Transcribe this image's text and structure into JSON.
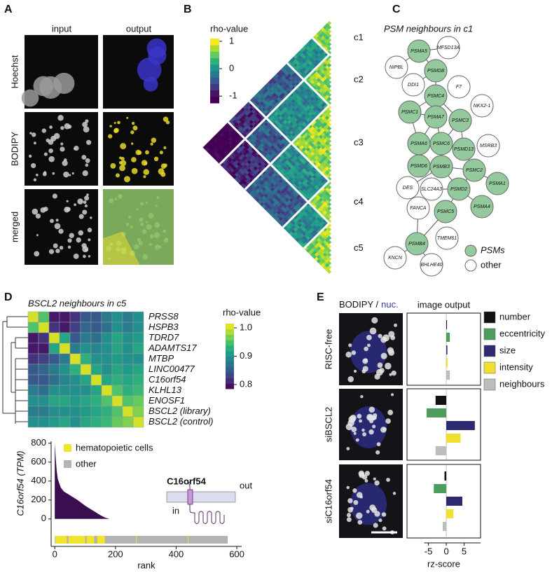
{
  "panel_labels": [
    "A",
    "B",
    "C",
    "D",
    "E"
  ],
  "panel_a": {
    "col_titles": [
      "input",
      "output"
    ],
    "row_titles": [
      "Hoechst",
      "BODIPY",
      "merged"
    ]
  },
  "panel_b": {
    "colorbar_title": "rho-value",
    "clim": [
      -1.25,
      1.1
    ],
    "colorbar_ticks": [
      1,
      0,
      -1
    ],
    "clusters": [
      "c1",
      "c2",
      "c3",
      "c4",
      "c5"
    ]
  },
  "panel_c": {
    "title": "PSM neighbours in c1",
    "nodes": [
      {
        "label": "PSMA5",
        "group": 0
      },
      {
        "label": "MFSD13A",
        "group": 1
      },
      {
        "label": "NIPBL",
        "group": 1
      },
      {
        "label": "PSMD8",
        "group": 0
      },
      {
        "label": "DDI1",
        "group": 1
      },
      {
        "label": "F7",
        "group": 1
      },
      {
        "label": "PSMC4",
        "group": 0
      },
      {
        "label": "NKX2-1",
        "group": 1
      },
      {
        "label": "PSMC1",
        "group": 0
      },
      {
        "label": "PSMA7",
        "group": 0
      },
      {
        "label": "PSMC3",
        "group": 0
      },
      {
        "label": "PSMA6",
        "group": 0
      },
      {
        "label": "PSMC6",
        "group": 0
      },
      {
        "label": "PSMD13",
        "group": 0
      },
      {
        "label": "MSRB3",
        "group": 1
      },
      {
        "label": "PSMD6",
        "group": 0
      },
      {
        "label": "PSMB3",
        "group": 0
      },
      {
        "label": "PSMC2",
        "group": 0
      },
      {
        "label": "PSMA1",
        "group": 0
      },
      {
        "label": "DES",
        "group": 1
      },
      {
        "label": "SLC24A3",
        "group": 1
      },
      {
        "label": "PSMD2",
        "group": 0
      },
      {
        "label": "PSMA4",
        "group": 0
      },
      {
        "label": "FANCA",
        "group": 1
      },
      {
        "label": "PSMC5",
        "group": 0
      },
      {
        "label": "TMEM61",
        "group": 1
      },
      {
        "label": "PSMB4",
        "group": 0
      },
      {
        "label": "KNCN",
        "group": 1
      },
      {
        "label": "BHLHE40",
        "group": 1
      }
    ],
    "edges": [
      [
        0,
        1
      ],
      [
        0,
        2
      ],
      [
        0,
        3
      ],
      [
        3,
        4
      ],
      [
        3,
        6
      ],
      [
        6,
        9
      ],
      [
        6,
        8
      ],
      [
        6,
        10
      ],
      [
        8,
        11
      ],
      [
        8,
        9
      ],
      [
        9,
        12
      ],
      [
        9,
        11
      ],
      [
        10,
        12
      ],
      [
        10,
        13
      ],
      [
        11,
        12
      ],
      [
        11,
        15
      ],
      [
        12,
        16
      ],
      [
        12,
        13
      ],
      [
        15,
        16
      ],
      [
        16,
        21
      ],
      [
        16,
        17
      ],
      [
        17,
        21
      ],
      [
        17,
        18
      ],
      [
        21,
        22
      ],
      [
        21,
        24
      ],
      [
        21,
        20
      ],
      [
        13,
        17
      ],
      [
        24,
        26
      ],
      [
        26,
        27
      ],
      [
        26,
        28
      ],
      [
        23,
        26
      ],
      [
        16,
        19
      ]
    ],
    "legend": [
      {
        "name": "PSMs",
        "color": "#93c99c"
      },
      {
        "name": "other",
        "color": "#ffffff"
      }
    ]
  },
  "panel_d": {
    "diagram_title": "C16orf54",
    "outside": "out",
    "inside": "in"
  },
  "panel_e": {
    "image_title": [
      "BODIPY /",
      "nuc."
    ]
  },
  "chart_data": [
    {
      "type": "heatmap",
      "title": "BSCL2 neighbours in c5",
      "rows": [
        "PRSS8",
        "HSPB3",
        "TDRD7",
        "ADAMTS17",
        "MTBP",
        "LINC00477",
        "C16orf54",
        "KLHL13",
        "ENOSF1",
        "BSCL2 (library)",
        "BSCL2 (control)"
      ],
      "values": [
        [
          1.0,
          0.95,
          0.8,
          0.8,
          0.82,
          0.85,
          0.85,
          0.88,
          0.9,
          0.88,
          0.9
        ],
        [
          0.95,
          1.0,
          0.82,
          0.8,
          0.83,
          0.86,
          0.85,
          0.87,
          0.9,
          0.88,
          0.9
        ],
        [
          0.8,
          0.82,
          1.0,
          0.92,
          0.85,
          0.88,
          0.87,
          0.9,
          0.92,
          0.9,
          0.91
        ],
        [
          0.8,
          0.8,
          0.92,
          1.0,
          0.88,
          0.9,
          0.89,
          0.9,
          0.92,
          0.9,
          0.92
        ],
        [
          0.82,
          0.83,
          0.85,
          0.88,
          1.0,
          0.93,
          0.9,
          0.9,
          0.91,
          0.9,
          0.9
        ],
        [
          0.85,
          0.86,
          0.88,
          0.9,
          0.93,
          1.0,
          0.92,
          0.9,
          0.92,
          0.91,
          0.92
        ],
        [
          0.85,
          0.85,
          0.87,
          0.89,
          0.9,
          0.92,
          1.0,
          0.92,
          0.93,
          0.92,
          0.93
        ],
        [
          0.88,
          0.87,
          0.9,
          0.9,
          0.9,
          0.9,
          0.92,
          1.0,
          0.95,
          0.93,
          0.94
        ],
        [
          0.9,
          0.9,
          0.92,
          0.92,
          0.91,
          0.92,
          0.93,
          0.95,
          1.0,
          0.95,
          0.96
        ],
        [
          0.88,
          0.88,
          0.9,
          0.9,
          0.9,
          0.91,
          0.92,
          0.93,
          0.95,
          1.0,
          0.97
        ],
        [
          0.9,
          0.9,
          0.91,
          0.92,
          0.9,
          0.92,
          0.93,
          0.94,
          0.96,
          0.97,
          1.0
        ]
      ],
      "clim": [
        0.785,
        1.015
      ],
      "colorbar_title": "rho-value",
      "colorbar_ticks": [
        {
          "value": 1.0,
          "label": "1.0"
        },
        0.9,
        0.8
      ]
    },
    {
      "type": "area",
      "x": [
        0,
        3,
        6,
        10,
        20,
        30,
        50,
        75,
        100,
        125,
        150,
        165,
        180
      ],
      "values": [
        800,
        650,
        520,
        420,
        330,
        290,
        250,
        200,
        140,
        90,
        40,
        15,
        0
      ],
      "color": "#3b0f4f",
      "xlabel": "rank",
      "ylabel": "C16orf54 (TPM)",
      "xlim": [
        -12,
        616
      ],
      "ylim": [
        -290,
        820
      ],
      "xticks": [
        0,
        200,
        400,
        600
      ],
      "yticks": [
        0,
        200,
        400,
        600,
        800
      ],
      "n_ranks": 570,
      "hematopoietic_ranges": [
        [
          2,
          40
        ],
        [
          45,
          100
        ],
        [
          105,
          130
        ],
        [
          140,
          165
        ],
        [
          268,
          270
        ],
        [
          438,
          440
        ]
      ],
      "legend": [
        {
          "name": "hematopoietic cells",
          "color": "#f2e32b"
        },
        {
          "name": "other",
          "color": "#b3b3b3"
        }
      ]
    },
    {
      "type": "barh",
      "title": "image output",
      "categories": [
        "RISC-free",
        "siBSCL2",
        "siC16orf54"
      ],
      "series": [
        {
          "name": "number",
          "color": "#111111",
          "values": [
            0.2,
            -3,
            -0.5
          ]
        },
        {
          "name": "eccentricity",
          "color": "#4f9d5d",
          "values": [
            1,
            -5.5,
            -3.5
          ]
        },
        {
          "name": "size",
          "color": "#2e2a72",
          "values": [
            0.3,
            8,
            4.5
          ]
        },
        {
          "name": "intensity",
          "color": "#f0e030",
          "values": [
            0.4,
            4,
            2
          ]
        },
        {
          "name": "neighbours",
          "color": "#bdbdbd",
          "values": [
            1,
            -3,
            -1
          ]
        }
      ],
      "xlim": [
        -11,
        9.6
      ],
      "xticks": [
        -5,
        0,
        5
      ],
      "xlabel": "rz-score"
    }
  ]
}
